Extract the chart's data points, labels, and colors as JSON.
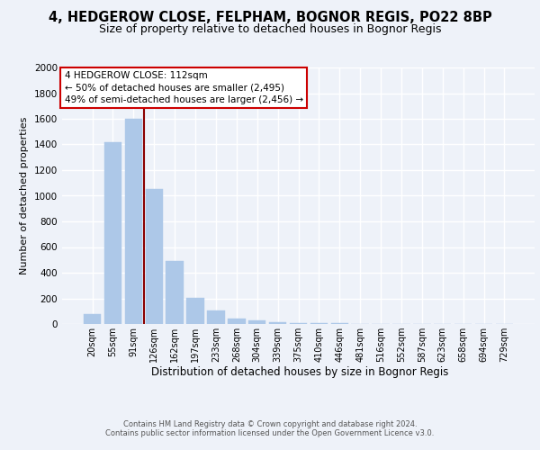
{
  "title": "4, HEDGEROW CLOSE, FELPHAM, BOGNOR REGIS, PO22 8BP",
  "subtitle": "Size of property relative to detached houses in Bognor Regis",
  "xlabel": "Distribution of detached houses by size in Bognor Regis",
  "ylabel": "Number of detached properties",
  "categories": [
    "20sqm",
    "55sqm",
    "91sqm",
    "126sqm",
    "162sqm",
    "197sqm",
    "233sqm",
    "268sqm",
    "304sqm",
    "339sqm",
    "375sqm",
    "410sqm",
    "446sqm",
    "481sqm",
    "516sqm",
    "552sqm",
    "587sqm",
    "623sqm",
    "658sqm",
    "694sqm",
    "729sqm"
  ],
  "values": [
    80,
    1420,
    1600,
    1050,
    490,
    205,
    105,
    40,
    30,
    15,
    10,
    5,
    5,
    2,
    2,
    1,
    1,
    1,
    0,
    0,
    0
  ],
  "bar_color": "#adc8e8",
  "vline_x": 2.5,
  "vline_color": "#8b0000",
  "annotation_box_edgecolor": "#cc0000",
  "annotation_line0": "4 HEDGEROW CLOSE: 112sqm",
  "annotation_line1": "← 50% of detached houses are smaller (2,495)",
  "annotation_line2": "49% of semi-detached houses are larger (2,456) →",
  "footer1": "Contains HM Land Registry data © Crown copyright and database right 2024.",
  "footer2": "Contains public sector information licensed under the Open Government Licence v3.0.",
  "ylim": [
    0,
    2000
  ],
  "yticks": [
    0,
    200,
    400,
    600,
    800,
    1000,
    1200,
    1400,
    1600,
    1800,
    2000
  ],
  "background_color": "#eef2f9",
  "grid_color": "#ffffff",
  "title_fontsize": 10.5,
  "subtitle_fontsize": 9,
  "ylabel_fontsize": 8,
  "xlabel_fontsize": 8.5,
  "tick_fontsize": 7,
  "footer_fontsize": 6,
  "annot_fontsize": 7.5
}
